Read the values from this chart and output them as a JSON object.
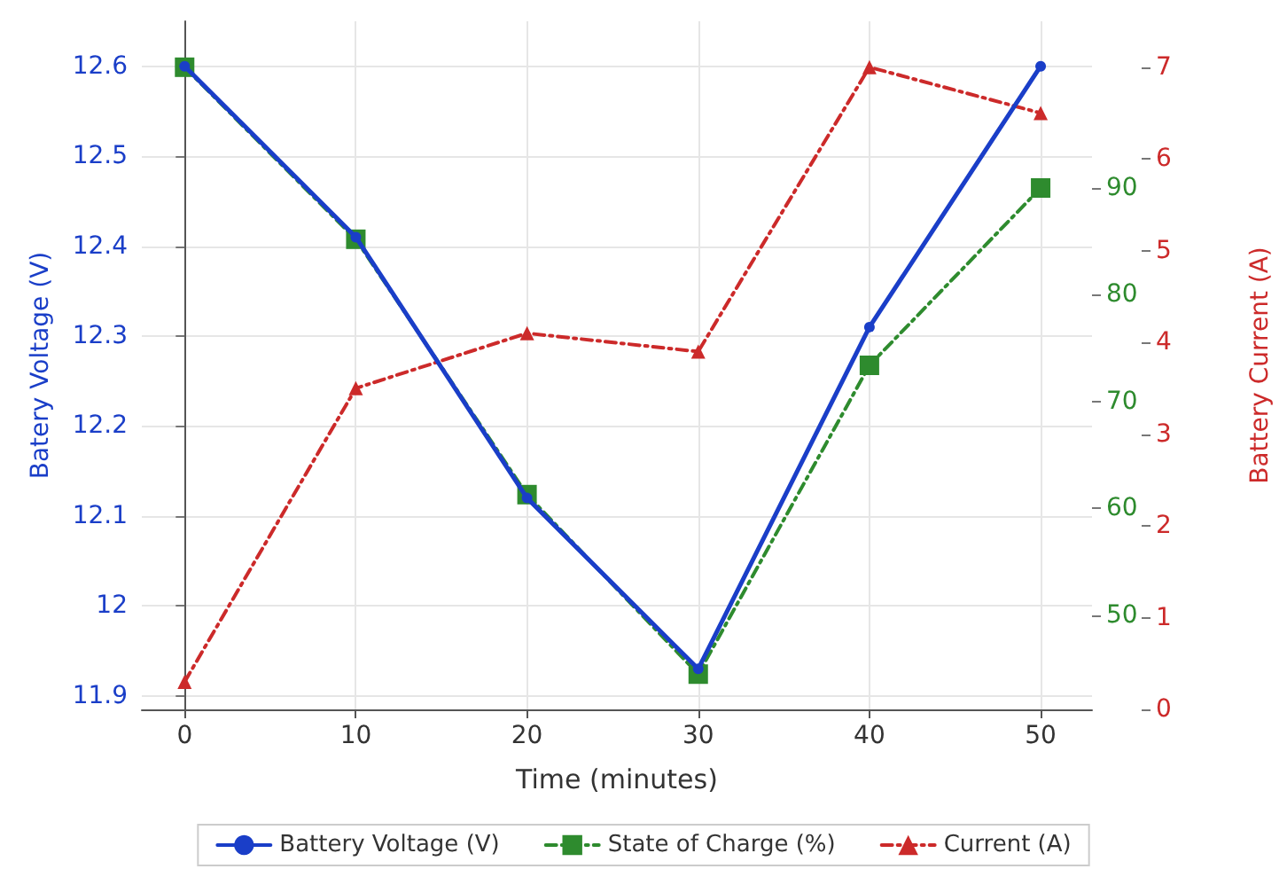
{
  "chart_data": {
    "type": "line",
    "xlabel": "Time (minutes)",
    "ylabel": "Batery Voltage (V)",
    "y2label": "Battery Current (A)",
    "x": [
      0,
      10,
      20,
      30,
      40,
      50
    ],
    "xlim": [
      -2.5,
      53
    ],
    "xticks": [
      0,
      10,
      20,
      30,
      40,
      50
    ],
    "ylim": [
      11.885,
      12.65
    ],
    "yticks": [
      11.9,
      12,
      12.1,
      12.2,
      12.3,
      12.4,
      12.5,
      12.6
    ],
    "y2lim": [
      0,
      7.5
    ],
    "y2ticks": [
      0,
      1,
      2,
      3,
      4,
      5,
      6,
      7
    ],
    "y3lim": [
      41.2,
      105.6
    ],
    "y3ticks": [
      50,
      60,
      70,
      80,
      90
    ],
    "series": [
      {
        "name": "Battery Voltage (V)",
        "color": "#1a3ec8",
        "values": [
          12.6,
          12.41,
          12.12,
          11.93,
          12.31,
          12.6
        ],
        "marker": "circle",
        "line_style": "solid"
      },
      {
        "name": "State of Charge (%)",
        "color": "#2e8b2e",
        "values": [
          101.3,
          85.2,
          61.3,
          44.5,
          73.4,
          90
        ],
        "axis": "y3",
        "marker": "square",
        "line_style": "dashed"
      },
      {
        "name": "Current (A)",
        "color": "#cc2a2a",
        "values": [
          0.3,
          3.5,
          4.1,
          3.9,
          7.0,
          6.5
        ],
        "axis": "y2",
        "marker": "triangle",
        "line_style": "dashed"
      }
    ],
    "grid": true,
    "legend": "bottom"
  }
}
